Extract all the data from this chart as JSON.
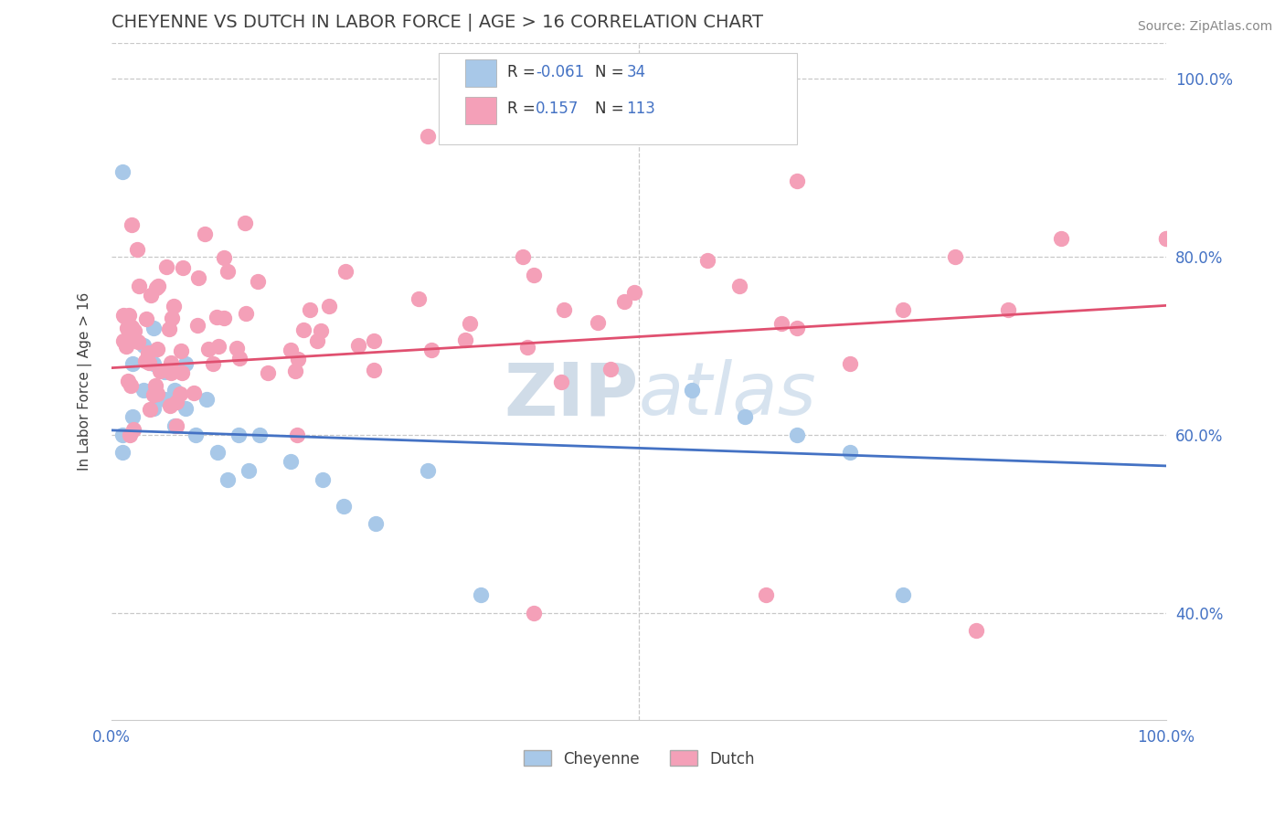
{
  "title": "CHEYENNE VS DUTCH IN LABOR FORCE | AGE > 16 CORRELATION CHART",
  "source_text": "Source: ZipAtlas.com",
  "ylabel": "In Labor Force | Age > 16",
  "xmin": 0.0,
  "xmax": 1.0,
  "ymin": 0.28,
  "ymax": 1.04,
  "cheyenne_color": "#a8c8e8",
  "dutch_color": "#f4a0b8",
  "cheyenne_line_color": "#4472c4",
  "dutch_line_color": "#e05070",
  "cheyenne_R": -0.061,
  "cheyenne_N": 34,
  "dutch_R": 0.157,
  "dutch_N": 113,
  "watermark_color": "#d0dce8",
  "background_color": "#ffffff",
  "grid_color": "#c8c8c8",
  "title_color": "#404040",
  "axis_label_color": "#404040",
  "tick_label_color": "#4472c4",
  "source_color": "#888888",
  "legend_text_color": "#4472c4",
  "y_ticks": [
    0.4,
    0.6,
    0.8,
    1.0
  ],
  "y_tick_labels": [
    "40.0%",
    "60.0%",
    "80.0%",
    "100.0%"
  ],
  "cheyenne_line_x0": 0.0,
  "cheyenne_line_y0": 0.605,
  "cheyenne_line_x1": 1.0,
  "cheyenne_line_y1": 0.565,
  "dutch_line_x0": 0.0,
  "dutch_line_y0": 0.675,
  "dutch_line_x1": 1.0,
  "dutch_line_y1": 0.745
}
